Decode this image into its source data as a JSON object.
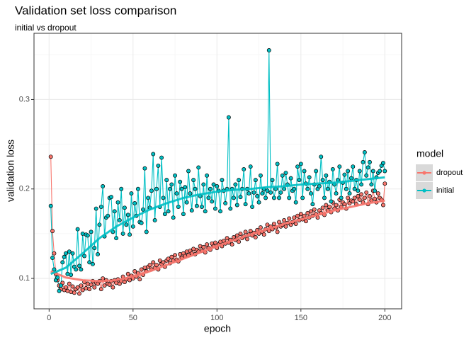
{
  "chart_data": {
    "type": "line",
    "title": "Validation set loss comparison",
    "subtitle": "initial vs dropout",
    "x_label": "epoch",
    "y_label": "validation loss",
    "legend_title": "model",
    "legend_position": "right",
    "grid": true,
    "xlim": [
      -9,
      210
    ],
    "ylim": [
      0.066,
      0.374
    ],
    "xticks": [
      0,
      50,
      100,
      150,
      200
    ],
    "yticks": [
      0.1,
      0.2,
      0.3
    ],
    "xminor": [
      25,
      75,
      125,
      175
    ],
    "yminor": [
      0.15,
      0.25,
      0.35
    ],
    "x": [
      1,
      2,
      3,
      4,
      5,
      6,
      7,
      8,
      9,
      10,
      11,
      12,
      13,
      14,
      15,
      16,
      17,
      18,
      19,
      20,
      21,
      22,
      23,
      24,
      25,
      26,
      27,
      28,
      29,
      30,
      31,
      32,
      33,
      34,
      35,
      36,
      37,
      38,
      39,
      40,
      41,
      42,
      43,
      44,
      45,
      46,
      47,
      48,
      49,
      50,
      51,
      52,
      53,
      54,
      55,
      56,
      57,
      58,
      59,
      60,
      61,
      62,
      63,
      64,
      65,
      66,
      67,
      68,
      69,
      70,
      71,
      72,
      73,
      74,
      75,
      76,
      77,
      78,
      79,
      80,
      81,
      82,
      83,
      84,
      85,
      86,
      87,
      88,
      89,
      90,
      91,
      92,
      93,
      94,
      95,
      96,
      97,
      98,
      99,
      100,
      101,
      102,
      103,
      104,
      105,
      106,
      107,
      108,
      109,
      110,
      111,
      112,
      113,
      114,
      115,
      116,
      117,
      118,
      119,
      120,
      121,
      122,
      123,
      124,
      125,
      126,
      127,
      128,
      129,
      130,
      131,
      132,
      133,
      134,
      135,
      136,
      137,
      138,
      139,
      140,
      141,
      142,
      143,
      144,
      145,
      146,
      147,
      148,
      149,
      150,
      151,
      152,
      153,
      154,
      155,
      156,
      157,
      158,
      159,
      160,
      161,
      162,
      163,
      164,
      165,
      166,
      167,
      168,
      169,
      170,
      171,
      172,
      173,
      174,
      175,
      176,
      177,
      178,
      179,
      180,
      181,
      182,
      183,
      184,
      185,
      186,
      187,
      188,
      189,
      190,
      191,
      192,
      193,
      194,
      195,
      196,
      197,
      198,
      199,
      200
    ],
    "smooth_x": [
      1,
      10,
      20,
      30,
      40,
      50,
      60,
      70,
      80,
      90,
      100,
      110,
      120,
      130,
      140,
      150,
      160,
      170,
      180,
      190,
      200
    ],
    "series": [
      {
        "name": "dropout",
        "color": "#f8766d",
        "values": [
          0.236,
          0.153,
          0.128,
          0.105,
          0.098,
          0.092,
          0.088,
          0.095,
          0.087,
          0.09,
          0.086,
          0.094,
          0.085,
          0.091,
          0.084,
          0.088,
          0.09,
          0.083,
          0.092,
          0.087,
          0.096,
          0.089,
          0.094,
          0.088,
          0.093,
          0.097,
          0.09,
          0.095,
          0.094,
          0.097,
          0.088,
          0.1,
          0.092,
          0.098,
          0.094,
          0.093,
          0.097,
          0.09,
          0.098,
          0.095,
          0.099,
          0.094,
          0.097,
          0.102,
          0.096,
          0.099,
          0.105,
          0.098,
          0.103,
          0.1,
          0.108,
          0.102,
          0.106,
          0.099,
          0.11,
          0.104,
          0.112,
          0.108,
          0.113,
          0.115,
          0.11,
          0.118,
          0.112,
          0.115,
          0.11,
          0.12,
          0.116,
          0.118,
          0.113,
          0.12,
          0.122,
          0.117,
          0.124,
          0.12,
          0.126,
          0.121,
          0.119,
          0.127,
          0.123,
          0.128,
          0.125,
          0.13,
          0.126,
          0.131,
          0.128,
          0.133,
          0.127,
          0.132,
          0.13,
          0.136,
          0.131,
          0.135,
          0.129,
          0.138,
          0.134,
          0.132,
          0.139,
          0.136,
          0.14,
          0.134,
          0.138,
          0.141,
          0.136,
          0.142,
          0.139,
          0.145,
          0.14,
          0.143,
          0.138,
          0.146,
          0.143,
          0.148,
          0.141,
          0.15,
          0.145,
          0.147,
          0.152,
          0.144,
          0.149,
          0.153,
          0.148,
          0.151,
          0.146,
          0.154,
          0.15,
          0.157,
          0.152,
          0.149,
          0.155,
          0.16,
          0.153,
          0.158,
          0.155,
          0.161,
          0.157,
          0.152,
          0.163,
          0.158,
          0.16,
          0.165,
          0.158,
          0.162,
          0.167,
          0.16,
          0.163,
          0.168,
          0.161,
          0.17,
          0.165,
          0.172,
          0.166,
          0.17,
          0.164,
          0.173,
          0.168,
          0.175,
          0.17,
          0.177,
          0.172,
          0.168,
          0.176,
          0.173,
          0.179,
          0.171,
          0.182,
          0.176,
          0.18,
          0.174,
          0.185,
          0.178,
          0.182,
          0.176,
          0.188,
          0.18,
          0.185,
          0.183,
          0.178,
          0.19,
          0.184,
          0.187,
          0.186,
          0.19,
          0.183,
          0.192,
          0.188,
          0.194,
          0.185,
          0.19,
          0.196,
          0.183,
          0.192,
          0.187,
          0.198,
          0.189,
          0.185,
          0.195,
          0.19,
          0.188,
          0.182,
          0.206
        ],
        "smooth_values": [
          0.108,
          0.101,
          0.098,
          0.097,
          0.098,
          0.102,
          0.108,
          0.115,
          0.122,
          0.129,
          0.136,
          0.143,
          0.149,
          0.155,
          0.161,
          0.166,
          0.171,
          0.176,
          0.18,
          0.184,
          0.187
        ]
      },
      {
        "name": "initial",
        "color": "#00bfc4",
        "values": [
          0.181,
          0.123,
          0.11,
          0.098,
          0.101,
          0.086,
          0.092,
          0.118,
          0.124,
          0.128,
          0.105,
          0.13,
          0.104,
          0.128,
          0.113,
          0.11,
          0.155,
          0.114,
          0.11,
          0.15,
          0.125,
          0.149,
          0.148,
          0.118,
          0.152,
          0.116,
          0.134,
          0.178,
          0.127,
          0.16,
          0.18,
          0.203,
          0.147,
          0.168,
          0.17,
          0.19,
          0.191,
          0.152,
          0.175,
          0.145,
          0.185,
          0.165,
          0.2,
          0.15,
          0.179,
          0.16,
          0.171,
          0.149,
          0.195,
          0.158,
          0.184,
          0.17,
          0.2,
          0.163,
          0.162,
          0.177,
          0.223,
          0.152,
          0.19,
          0.179,
          0.198,
          0.239,
          0.165,
          0.2,
          0.226,
          0.18,
          0.235,
          0.19,
          0.172,
          0.21,
          0.175,
          0.2,
          0.205,
          0.168,
          0.215,
          0.195,
          0.18,
          0.208,
          0.2,
          0.172,
          0.202,
          0.185,
          0.22,
          0.195,
          0.176,
          0.21,
          0.2,
          0.181,
          0.224,
          0.192,
          0.18,
          0.205,
          0.175,
          0.215,
          0.19,
          0.2,
          0.186,
          0.205,
          0.178,
          0.203,
          0.198,
          0.175,
          0.21,
          0.198,
          0.184,
          0.2,
          0.28,
          0.178,
          0.2,
          0.19,
          0.205,
          0.182,
          0.21,
          0.191,
          0.2,
          0.222,
          0.183,
          0.2,
          0.195,
          0.225,
          0.18,
          0.196,
          0.21,
          0.192,
          0.185,
          0.215,
          0.195,
          0.2,
          0.19,
          0.198,
          0.355,
          0.196,
          0.21,
          0.19,
          0.2,
          0.228,
          0.19,
          0.196,
          0.215,
          0.2,
          0.218,
          0.205,
          0.19,
          0.212,
          0.198,
          0.2,
          0.185,
          0.225,
          0.21,
          0.228,
          0.19,
          0.22,
          0.206,
          0.2,
          0.213,
          0.195,
          0.183,
          0.205,
          0.22,
          0.2,
          0.203,
          0.236,
          0.21,
          0.19,
          0.215,
          0.2,
          0.208,
          0.186,
          0.222,
          0.205,
          0.195,
          0.21,
          0.225,
          0.19,
          0.207,
          0.216,
          0.2,
          0.22,
          0.195,
          0.212,
          0.225,
          0.2,
          0.21,
          0.198,
          0.22,
          0.205,
          0.23,
          0.241,
          0.215,
          0.224,
          0.23,
          0.205,
          0.22,
          0.198,
          0.213,
          0.218,
          0.22,
          0.226,
          0.229,
          0.22
        ],
        "smooth_values": [
          0.105,
          0.112,
          0.128,
          0.145,
          0.158,
          0.168,
          0.177,
          0.184,
          0.19,
          0.194,
          0.197,
          0.199,
          0.2,
          0.202,
          0.203,
          0.205,
          0.206,
          0.207,
          0.209,
          0.211,
          0.213
        ]
      }
    ]
  }
}
